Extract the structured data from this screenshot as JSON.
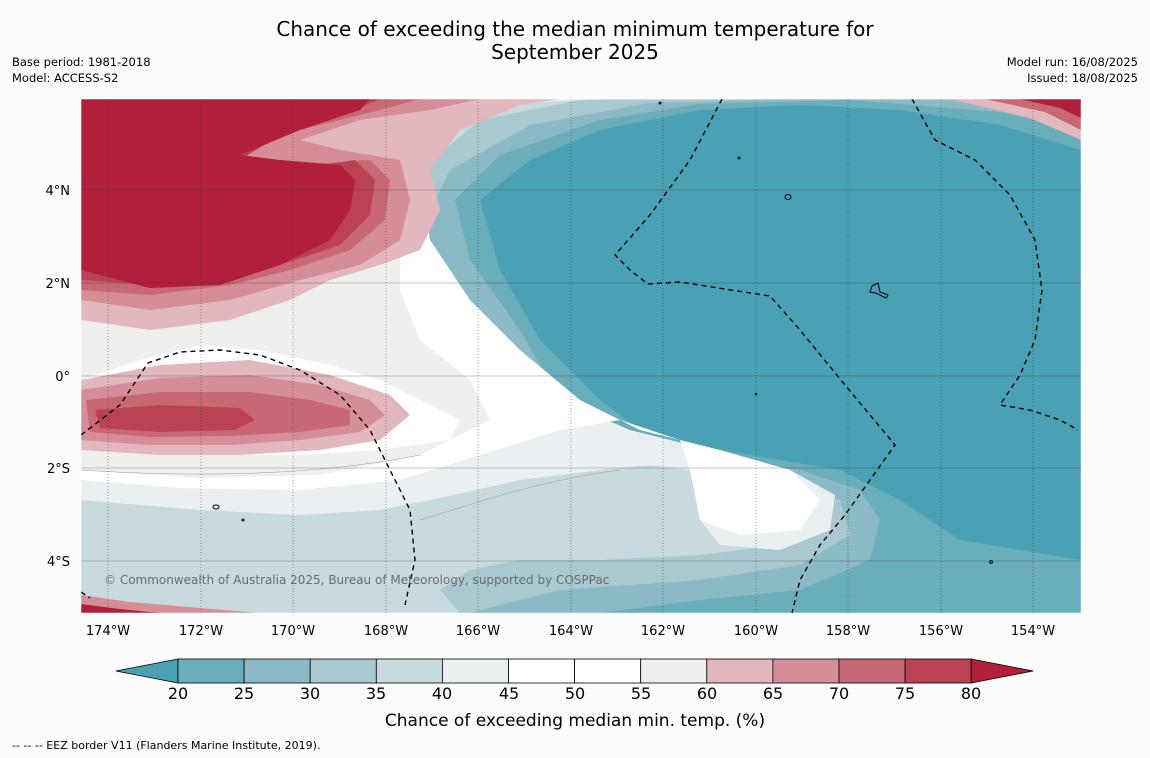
{
  "title": {
    "line1": "Chance of exceeding the median minimum temperature for",
    "line2": "September 2025"
  },
  "meta_left": {
    "base_period": "Base period: 1981-2018",
    "model": "Model: ACCESS-S2"
  },
  "meta_right": {
    "model_run": "Model run: 16/08/2025",
    "issued": "Issued: 18/08/2025"
  },
  "map": {
    "lon_labels": [
      "174°W",
      "172°W",
      "170°W",
      "168°W",
      "166°W",
      "164°W",
      "162°W",
      "160°W",
      "158°W",
      "156°W",
      "154°W"
    ],
    "lat_labels": [
      "4°N",
      "2°N",
      "0°",
      "2°S",
      "4°S"
    ],
    "credit": "© Commonwealth of Australia 2025, Bureau of Meteorology, supported by COSPPac"
  },
  "colorbar": {
    "ticks": [
      "20",
      "25",
      "30",
      "35",
      "40",
      "45",
      "50",
      "55",
      "60",
      "65",
      "70",
      "75",
      "80"
    ],
    "colors": [
      "#4aa1b3",
      "#6aadbb",
      "#8bbac6",
      "#aac8cf",
      "#c9dade",
      "#eaf0f2",
      "#ffffff",
      "#ffffff",
      "#efefee",
      "#e2b7bd",
      "#d58d98",
      "#c86874",
      "#bb4252",
      "#b11f3a"
    ],
    "label": "Chance of exceeding median min. temp. (%)"
  },
  "footer": {
    "legend_text": "--  --  -- EEZ border V11 (Flanders Marine Institute, 2019)."
  }
}
